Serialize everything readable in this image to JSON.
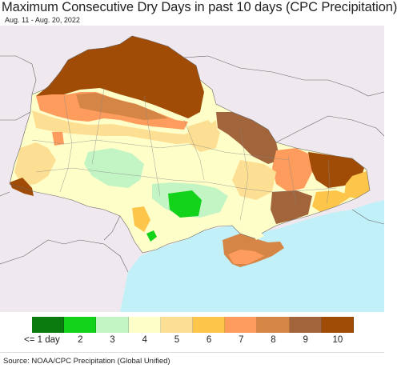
{
  "header": {
    "title": "Maximum Consecutive Dry Days in past 10 days (CPC Precipitation)",
    "subtitle": "Aug. 11 - Aug. 20, 2022"
  },
  "map": {
    "colors": {
      "land_outside": "#efe9ef",
      "sea": "#c2f0f9",
      "border": "#666666"
    }
  },
  "legend": {
    "items": [
      {
        "label": "<= 1 day",
        "color": "#0b7b10"
      },
      {
        "label": "2",
        "color": "#12d31a"
      },
      {
        "label": "3",
        "color": "#c3f5c4"
      },
      {
        "label": "4",
        "color": "#fefec9"
      },
      {
        "label": "5",
        "color": "#fddf93"
      },
      {
        "label": "6",
        "color": "#fdc549"
      },
      {
        "label": "7",
        "color": "#fd9c5d"
      },
      {
        "label": "8",
        "color": "#d58546"
      },
      {
        "label": "9",
        "color": "#a2643b"
      },
      {
        "label": "10",
        "color": "#a04c06"
      }
    ]
  },
  "footer": {
    "source": "Source: NOAA/CPC Precipitation (Global Unified)"
  }
}
